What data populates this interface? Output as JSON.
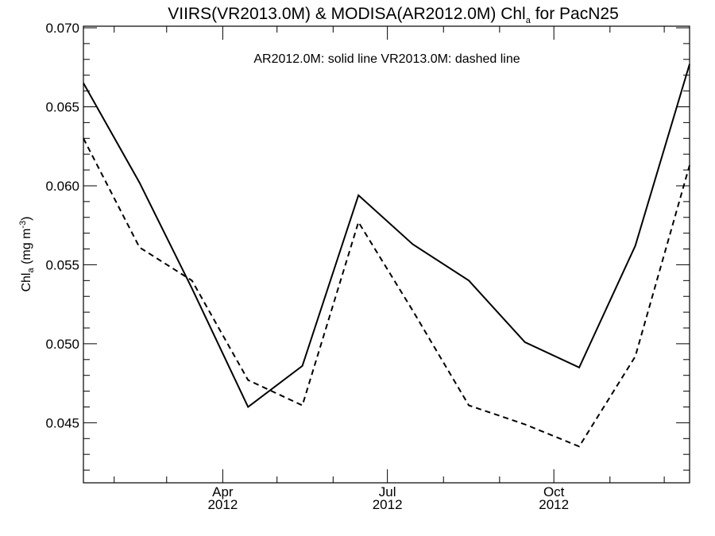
{
  "chart_data": {
    "type": "line",
    "title": "VIIRS(VR2013.0M) & MODISA(AR2012.0M)  Chl",
    "title_sub": "a",
    "title_suffix": " for PacN25",
    "annotation": "AR2012.0M: solid line   VR2013.0M: dashed line",
    "ylabel_main": "Chl",
    "ylabel_sub": "a",
    "ylabel_units": " (mg m",
    "ylabel_sup": "-3",
    "ylabel_close": ")",
    "x": [
      "2012-01-15",
      "2012-02-15",
      "2012-03-15",
      "2012-04-15",
      "2012-05-15",
      "2012-06-15",
      "2012-07-15",
      "2012-08-15",
      "2012-09-15",
      "2012-10-15",
      "2012-11-15",
      "2012-12-15"
    ],
    "xlim": [
      "2012-01-15",
      "2012-12-15"
    ],
    "ylim": [
      0.0412,
      0.0701
    ],
    "yticks": [
      {
        "value": 0.045,
        "label": "0.045"
      },
      {
        "value": 0.05,
        "label": "0.050"
      },
      {
        "value": 0.055,
        "label": "0.055"
      },
      {
        "value": 0.06,
        "label": "0.060"
      },
      {
        "value": 0.065,
        "label": "0.065"
      },
      {
        "value": 0.07,
        "label": "0.070"
      }
    ],
    "xticks": [
      {
        "date": "2012-04-01",
        "label": "Apr",
        "year": "2012"
      },
      {
        "date": "2012-07-01",
        "label": "Jul",
        "year": "2012"
      },
      {
        "date": "2012-10-01",
        "label": "Oct",
        "year": "2012"
      }
    ],
    "series": [
      {
        "style": "solid",
        "values": [
          0.0665,
          0.0602,
          0.0535,
          0.046,
          0.0486,
          0.0594,
          0.0563,
          0.054,
          0.0501,
          0.0485,
          0.0562,
          0.0677
        ]
      },
      {
        "style": "dashed",
        "values": [
          0.063,
          0.0561,
          0.054,
          0.0477,
          0.0461,
          0.0577,
          0.0521,
          0.0461,
          0.0449,
          0.0435,
          0.0492,
          0.0613
        ]
      }
    ],
    "grid": false
  }
}
